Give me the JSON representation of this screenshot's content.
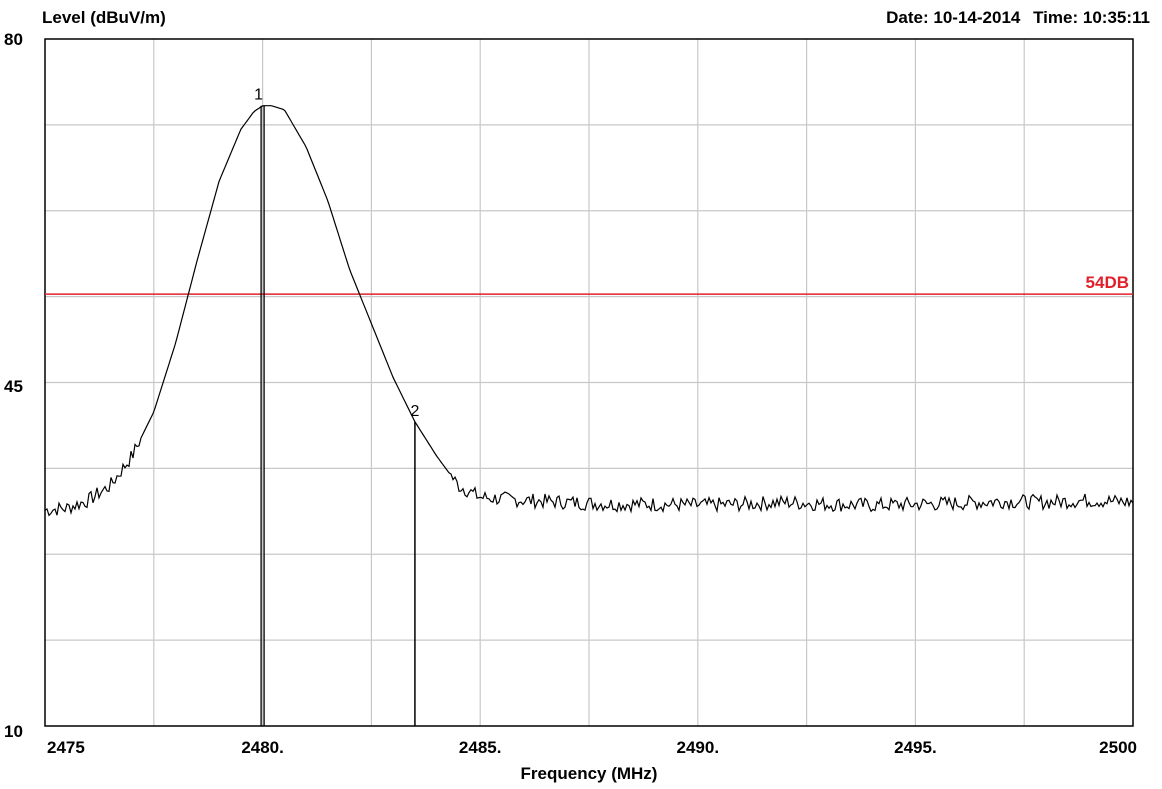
{
  "header": {
    "y_title": "Level (dBuV/m)",
    "date_label": "Date:",
    "date": "10-14-2014",
    "time_label": "Time:",
    "time": "10:35:11"
  },
  "limit_label": "54DB",
  "chart_data": {
    "type": "line",
    "xlabel": "Frequency (MHz)",
    "ylabel": "Level (dBuV/m)",
    "xlim": [
      2475,
      2500
    ],
    "ylim": [
      10,
      80
    ],
    "x_ticks": [
      2475,
      2480,
      2485,
      2490,
      2495,
      2500
    ],
    "x_tick_labels": [
      "2475",
      "2480.",
      "2485.",
      "2490.",
      "2495.",
      "2500"
    ],
    "y_tick_labels": [
      "80",
      "45",
      "10"
    ],
    "grid": true,
    "limit_line": {
      "value": 54,
      "label": "54DB",
      "color": "#e0202a"
    },
    "markers": [
      {
        "label": "1",
        "x": 2480.0,
        "y": 73.2
      },
      {
        "label": "2",
        "x": 2483.5,
        "y": 41.0
      }
    ],
    "series": [
      {
        "color": "#000000",
        "x": [
          2475.0,
          2475.5,
          2476.0,
          2476.5,
          2477.0,
          2477.5,
          2478.0,
          2478.5,
          2479.0,
          2479.5,
          2479.8,
          2480.0,
          2480.2,
          2480.5,
          2481.0,
          2481.5,
          2482.0,
          2482.5,
          2483.0,
          2483.5,
          2484.0,
          2484.5,
          2485.0,
          2486.0,
          2487.0,
          2488.0,
          2489.0,
          2490.0,
          2491.0,
          2492.0,
          2493.0,
          2494.0,
          2495.0,
          2496.0,
          2497.0,
          2498.0,
          2499.0,
          2500.0
        ],
        "y": [
          32.0,
          32.2,
          33.0,
          34.5,
          37.5,
          42.0,
          49.0,
          57.5,
          65.5,
          70.8,
          72.6,
          73.2,
          73.2,
          72.8,
          69.0,
          63.5,
          56.5,
          51.0,
          45.5,
          41.0,
          37.5,
          34.5,
          33.3,
          33.0,
          32.8,
          32.6,
          32.6,
          32.5,
          32.6,
          32.8,
          32.6,
          32.5,
          32.6,
          32.7,
          32.9,
          32.8,
          33.0,
          32.8
        ]
      }
    ]
  }
}
